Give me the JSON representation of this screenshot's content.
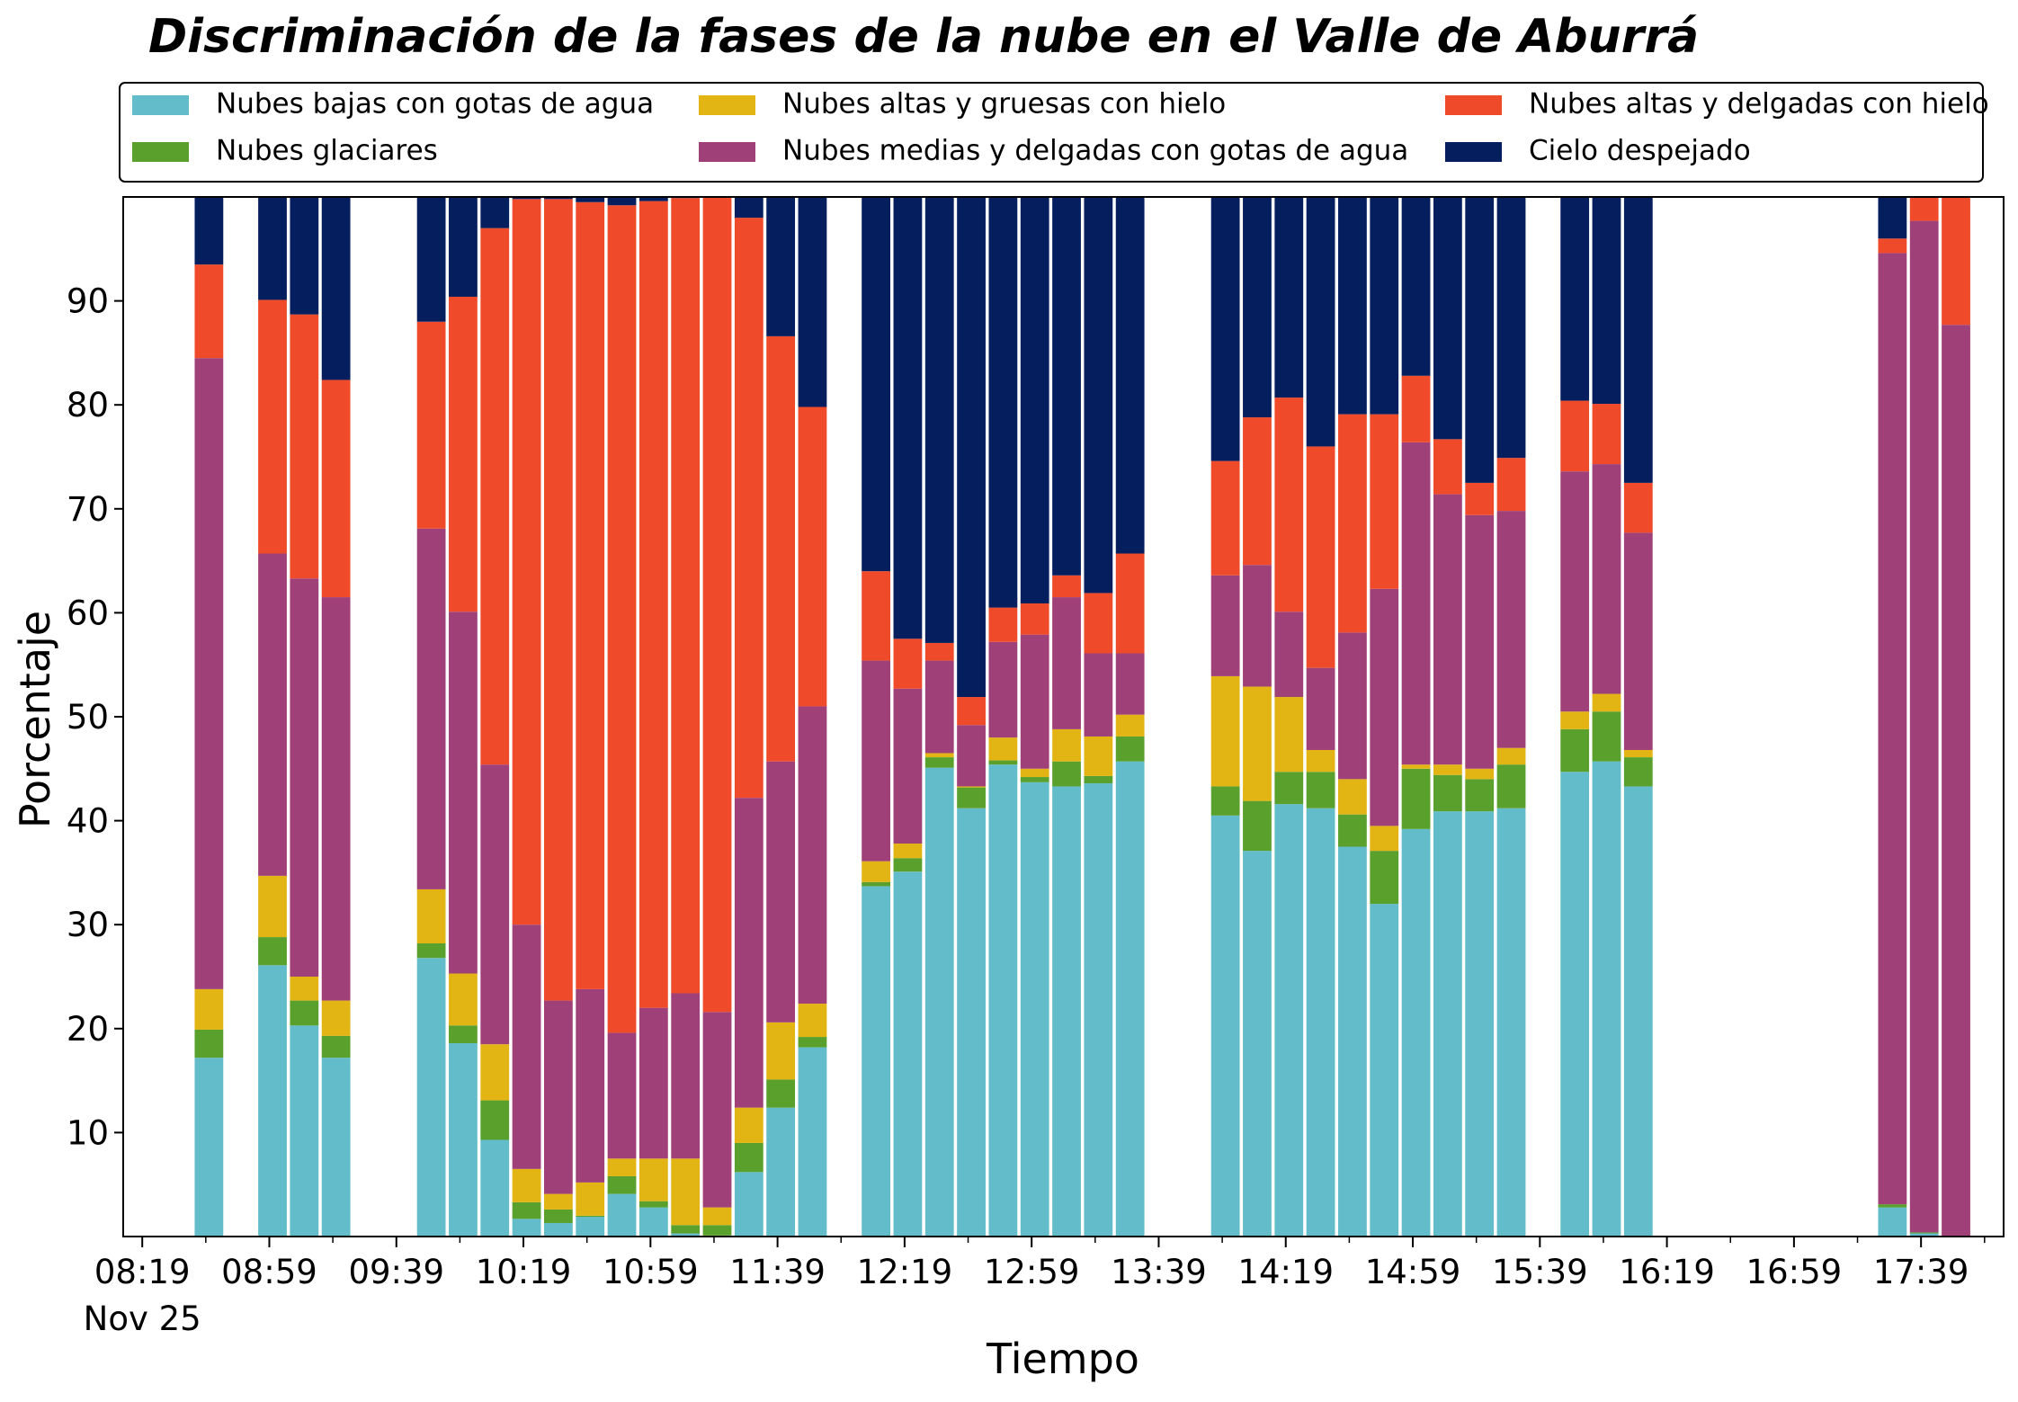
{
  "chart_data": {
    "type": "stacked_bar",
    "title": "Discriminación de la fases de la nube en el Valle de Aburrá",
    "x_label": "Tiempo",
    "y_label": "Porcentaje",
    "x_date_label": "Nov 25",
    "x": [
      "08:40",
      "09:00",
      "09:10",
      "09:20",
      "09:50",
      "10:00",
      "10:10",
      "10:20",
      "10:30",
      "10:40",
      "10:50",
      "11:00",
      "11:10",
      "11:20",
      "11:30",
      "11:40",
      "11:50",
      "12:10",
      "12:20",
      "12:30",
      "12:40",
      "12:50",
      "13:00",
      "13:10",
      "13:20",
      "13:30",
      "14:00",
      "14:10",
      "14:20",
      "14:30",
      "14:40",
      "14:50",
      "15:00",
      "15:10",
      "15:20",
      "15:30",
      "15:50",
      "16:00",
      "16:10",
      "17:30",
      "17:40",
      "17:50"
    ],
    "series": [
      {
        "name": "Nubes bajas con gotas de agua",
        "color": "#63bcc9",
        "values": [
          17.2,
          26.1,
          20.3,
          17.2,
          26.8,
          18.6,
          9.3,
          1.7,
          1.3,
          1.9,
          4.1,
          2.8,
          0.3,
          0.1,
          6.2,
          12.4,
          18.2,
          33.7,
          35.1,
          45.1,
          41.2,
          45.4,
          43.7,
          43.3,
          43.6,
          45.7,
          40.5,
          37.1,
          41.6,
          41.2,
          37.5,
          32.0,
          39.2,
          40.9,
          40.9,
          41.2,
          44.7,
          45.7,
          43.3,
          2.8,
          0.3,
          0
        ]
      },
      {
        "name": "Nubes glaciares",
        "color": "#5aa02c",
        "values": [
          2.7,
          2.7,
          2.4,
          2.1,
          1.4,
          1.7,
          3.8,
          1.6,
          1.3,
          0.1,
          1.7,
          0.6,
          0.8,
          1.0,
          2.8,
          2.7,
          1.0,
          0.4,
          1.3,
          1.0,
          2.0,
          0.4,
          0.5,
          2.4,
          0.7,
          2.4,
          2.8,
          4.8,
          3.1,
          3.5,
          3.1,
          5.1,
          5.8,
          3.5,
          3.1,
          4.2,
          4.1,
          4.8,
          2.8,
          0.3,
          0.1,
          0
        ]
      },
      {
        "name": "Nubes altas y gruesas con hielo",
        "color": "#e2b514",
        "values": [
          3.9,
          5.9,
          2.3,
          3.4,
          5.2,
          5.0,
          5.4,
          3.2,
          1.5,
          3.2,
          1.7,
          4.1,
          6.4,
          1.7,
          3.4,
          5.5,
          3.2,
          2.0,
          1.4,
          0.4,
          0.1,
          2.2,
          0.8,
          3.1,
          3.8,
          2.1,
          10.6,
          11.0,
          7.2,
          2.1,
          3.4,
          2.4,
          0.4,
          1.0,
          1.0,
          1.6,
          1.7,
          1.7,
          0.7,
          0,
          0,
          0
        ]
      },
      {
        "name": "Nubes medias y delgadas con gotas de agua",
        "color": "#a04078",
        "values": [
          60.7,
          31.0,
          38.3,
          38.8,
          34.7,
          34.8,
          26.9,
          23.5,
          18.6,
          18.6,
          12.1,
          14.5,
          15.9,
          18.8,
          29.8,
          25.1,
          28.6,
          19.3,
          14.9,
          8.9,
          5.9,
          9.2,
          12.9,
          12.7,
          8.0,
          5.9,
          9.7,
          11.7,
          8.2,
          7.9,
          14.1,
          22.8,
          31.0,
          26.0,
          24.4,
          22.8,
          23.1,
          22.1,
          20.9,
          91.5,
          97.3,
          87.7
        ]
      },
      {
        "name": "Nubes altas y delgadas con hielo",
        "color": "#ef4a2a",
        "values": [
          9.0,
          24.4,
          25.4,
          20.9,
          19.9,
          30.3,
          51.6,
          69.8,
          77.1,
          75.7,
          79.6,
          77.6,
          76.5,
          78.4,
          55.8,
          40.9,
          28.8,
          8.6,
          4.8,
          1.7,
          2.7,
          3.3,
          3.0,
          2.1,
          5.8,
          9.6,
          11.0,
          14.2,
          20.6,
          21.3,
          21.0,
          16.8,
          6.4,
          5.3,
          3.1,
          5.1,
          6.8,
          5.8,
          4.8,
          1.4,
          2.3,
          12.3
        ]
      },
      {
        "name": "Cielo despejado",
        "color": "#041e5e",
        "values": [
          6.5,
          9.9,
          11.3,
          17.6,
          12.0,
          9.6,
          3.0,
          0.2,
          0.2,
          0.5,
          0.8,
          0.4,
          0.1,
          0,
          2.0,
          13.4,
          20.2,
          36.0,
          42.5,
          42.9,
          48.1,
          39.5,
          39.1,
          36.4,
          38.1,
          34.3,
          25.4,
          21.2,
          19.3,
          24.0,
          20.9,
          20.9,
          17.2,
          23.3,
          27.5,
          25.1,
          19.6,
          19.9,
          27.5,
          4.0,
          0,
          0
        ]
      }
    ],
    "xlim": [
      "08:13",
      "18:05"
    ],
    "xticks": [
      "08:19",
      "08:59",
      "09:39",
      "10:19",
      "10:59",
      "11:39",
      "12:19",
      "12:59",
      "13:39",
      "14:19",
      "14:59",
      "15:39",
      "16:19",
      "16:59",
      "17:39"
    ],
    "xminorticks": [
      "08:39",
      "09:19",
      "09:59",
      "10:39",
      "11:19",
      "11:59",
      "12:39",
      "13:19",
      "13:59",
      "14:39",
      "15:19",
      "15:59",
      "16:39",
      "17:19",
      "17:59"
    ],
    "ylim": [
      0,
      100
    ],
    "yticks": [
      10,
      20,
      30,
      40,
      50,
      60,
      70,
      80,
      90
    ],
    "bar_width_minutes": 9,
    "legend": "top"
  }
}
